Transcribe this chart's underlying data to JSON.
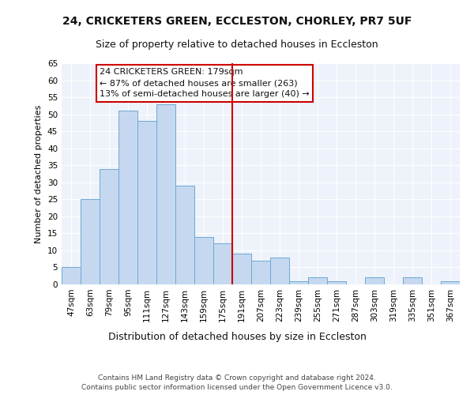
{
  "title": "24, CRICKETERS GREEN, ECCLESTON, CHORLEY, PR7 5UF",
  "subtitle": "Size of property relative to detached houses in Eccleston",
  "xlabel": "Distribution of detached houses by size in Eccleston",
  "ylabel": "Number of detached properties",
  "categories": [
    "47sqm",
    "63sqm",
    "79sqm",
    "95sqm",
    "111sqm",
    "127sqm",
    "143sqm",
    "159sqm",
    "175sqm",
    "191sqm",
    "207sqm",
    "223sqm",
    "239sqm",
    "255sqm",
    "271sqm",
    "287sqm",
    "303sqm",
    "319sqm",
    "335sqm",
    "351sqm",
    "367sqm"
  ],
  "values": [
    5,
    25,
    34,
    51,
    48,
    53,
    29,
    14,
    12,
    9,
    7,
    8,
    1,
    2,
    1,
    0,
    2,
    0,
    2,
    0,
    1
  ],
  "bar_color": "#c5d8f0",
  "bar_edge_color": "#6aaad4",
  "vline_x_index": 8,
  "vline_color": "#cc0000",
  "ylim": [
    0,
    65
  ],
  "yticks": [
    0,
    5,
    10,
    15,
    20,
    25,
    30,
    35,
    40,
    45,
    50,
    55,
    60,
    65
  ],
  "annotation_text": "24 CRICKETERS GREEN: 179sqm\n← 87% of detached houses are smaller (263)\n13% of semi-detached houses are larger (40) →",
  "annotation_box_color": "#ffffff",
  "annotation_box_edge": "#cc0000",
  "background_color": "#eef2fa",
  "grid_color": "#ffffff",
  "footer_text": "Contains HM Land Registry data © Crown copyright and database right 2024.\nContains public sector information licensed under the Open Government Licence v3.0.",
  "title_fontsize": 10,
  "subtitle_fontsize": 9,
  "xlabel_fontsize": 9,
  "ylabel_fontsize": 8,
  "tick_fontsize": 7.5,
  "annotation_fontsize": 8,
  "footer_fontsize": 6.5
}
